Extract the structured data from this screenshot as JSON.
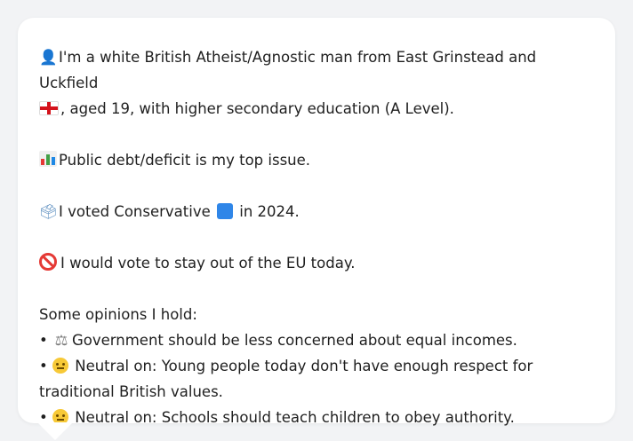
{
  "message": {
    "intro_line_1": "I'm a white British Atheist/Agnostic man from East Grinstead and Uckfield",
    "intro_line_2": ", aged 19, with higher secondary education (A Level).",
    "top_issue": "Public debt/deficit is my top issue.",
    "vote_prefix": "I voted Conservative ",
    "vote_suffix": " in 2024.",
    "eu_stance": "I would vote to stay out of the EU today.",
    "opinions_title": "Some opinions I hold:",
    "opinions": [
      "Government should be less concerned about equal incomes.",
      "Neutral on: Young people today don't have enough respect for traditional British values.",
      "Neutral on: Schools should teach children to obey authority."
    ]
  },
  "icons": {
    "person": "person-icon",
    "flag": "england-flag-icon",
    "chart": "bar-chart-icon",
    "ballot": "ballot-box-icon",
    "party_square": "blue-square-icon",
    "prohibit": "prohibited-icon",
    "scale": "scale-icon",
    "neutral": "neutral-face-icon"
  },
  "colors": {
    "background": "#f2f3f5",
    "card": "#ffffff",
    "text": "#1f1f1f",
    "conservative_blue": "#2f86e8",
    "prohibit_red": "#e53935"
  }
}
